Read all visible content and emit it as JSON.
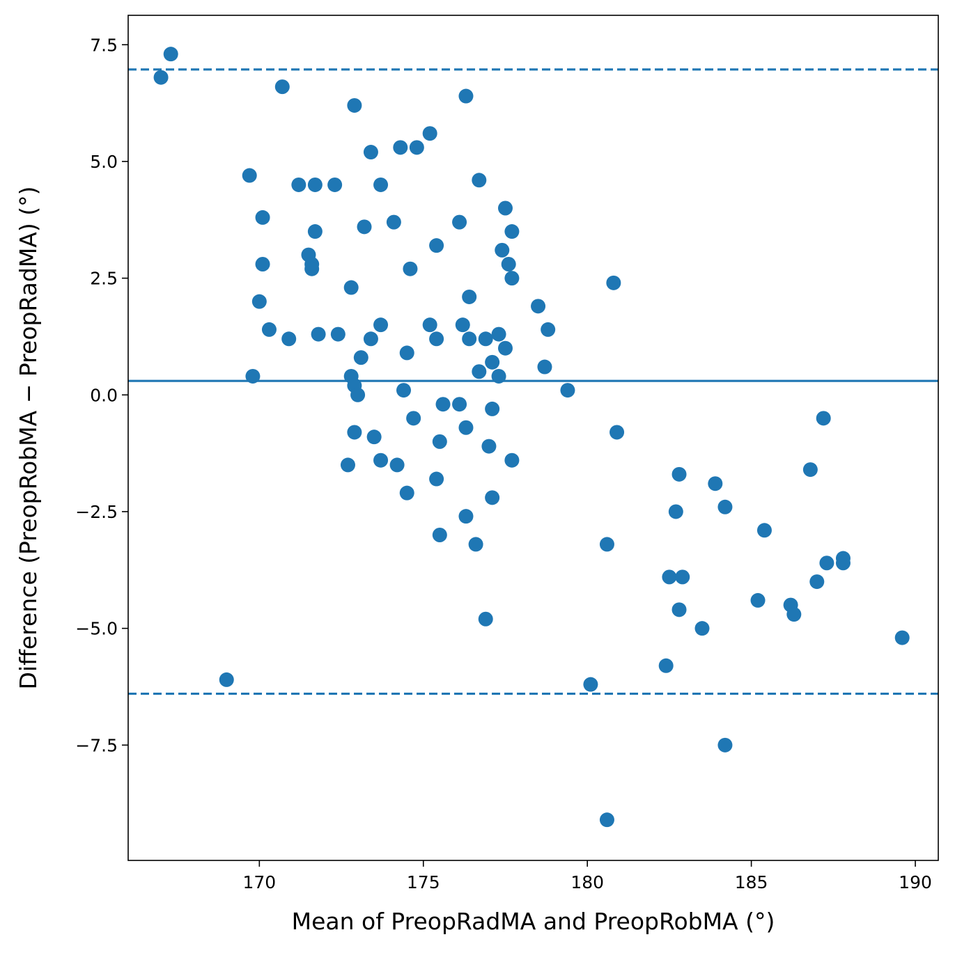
{
  "chart_data": {
    "type": "scatter",
    "title": "",
    "xlabel": "Mean of PreopRadMA and PreopRobMA (°)",
    "ylabel": "Difference (PreopRobMA − PreopRadMA) (°)",
    "xlim": [
      166,
      190.7
    ],
    "ylim": [
      -9.97,
      8.13
    ],
    "xticks": [
      170,
      175,
      180,
      185,
      190
    ],
    "xtick_labels": [
      "170",
      "175",
      "180",
      "185",
      "190"
    ],
    "yticks": [
      7.5,
      5.0,
      2.5,
      0.0,
      -2.5,
      -5.0,
      -7.5
    ],
    "ytick_labels": [
      "7.5",
      "5.0",
      "2.5",
      "0.0",
      "−2.5",
      "−5.0",
      "−7.5"
    ],
    "grid": false,
    "color": "#1f77b4",
    "reference_lines": {
      "mean_difference": 0.3,
      "upper_limit": 6.97,
      "lower_limit": -6.4
    },
    "points": [
      [
        167.0,
        6.8
      ],
      [
        167.3,
        7.3
      ],
      [
        169.0,
        -6.1
      ],
      [
        169.7,
        4.7
      ],
      [
        169.8,
        0.4
      ],
      [
        170.0,
        2.0
      ],
      [
        170.1,
        3.8
      ],
      [
        170.1,
        2.8
      ],
      [
        170.3,
        1.4
      ],
      [
        170.7,
        6.6
      ],
      [
        170.9,
        1.2
      ],
      [
        171.2,
        4.5
      ],
      [
        171.5,
        3.0
      ],
      [
        171.6,
        2.8
      ],
      [
        171.6,
        2.7
      ],
      [
        171.7,
        4.5
      ],
      [
        171.7,
        3.5
      ],
      [
        171.8,
        1.3
      ],
      [
        172.3,
        4.5
      ],
      [
        172.4,
        1.3
      ],
      [
        172.7,
        -1.5
      ],
      [
        172.8,
        0.4
      ],
      [
        172.8,
        2.3
      ],
      [
        172.9,
        0.2
      ],
      [
        172.9,
        -0.8
      ],
      [
        172.9,
        6.2
      ],
      [
        173.0,
        0.0
      ],
      [
        173.1,
        0.8
      ],
      [
        173.2,
        3.6
      ],
      [
        173.4,
        1.2
      ],
      [
        173.4,
        5.2
      ],
      [
        173.5,
        -0.9
      ],
      [
        173.7,
        -1.4
      ],
      [
        173.7,
        4.5
      ],
      [
        173.7,
        1.5
      ],
      [
        174.1,
        3.7
      ],
      [
        174.2,
        -1.5
      ],
      [
        174.3,
        5.3
      ],
      [
        174.4,
        0.1
      ],
      [
        174.5,
        0.9
      ],
      [
        174.5,
        -2.1
      ],
      [
        174.6,
        2.7
      ],
      [
        174.7,
        -0.5
      ],
      [
        174.8,
        5.3
      ],
      [
        175.2,
        5.6
      ],
      [
        175.2,
        1.5
      ],
      [
        175.4,
        3.2
      ],
      [
        175.4,
        1.2
      ],
      [
        175.4,
        -1.8
      ],
      [
        175.5,
        -1.0
      ],
      [
        175.5,
        -3.0
      ],
      [
        175.6,
        -0.2
      ],
      [
        176.1,
        -0.2
      ],
      [
        176.1,
        3.7
      ],
      [
        176.2,
        1.5
      ],
      [
        176.3,
        6.4
      ],
      [
        176.3,
        -2.6
      ],
      [
        176.3,
        -0.7
      ],
      [
        176.4,
        1.2
      ],
      [
        176.4,
        2.1
      ],
      [
        176.6,
        -3.2
      ],
      [
        176.7,
        4.6
      ],
      [
        176.7,
        0.5
      ],
      [
        176.9,
        1.2
      ],
      [
        176.9,
        -4.8
      ],
      [
        177.0,
        -1.1
      ],
      [
        177.1,
        -2.2
      ],
      [
        177.1,
        0.7
      ],
      [
        177.1,
        -0.3
      ],
      [
        177.3,
        0.4
      ],
      [
        177.3,
        1.3
      ],
      [
        177.4,
        3.1
      ],
      [
        177.5,
        4.0
      ],
      [
        177.5,
        1.0
      ],
      [
        177.6,
        2.8
      ],
      [
        177.7,
        3.5
      ],
      [
        177.7,
        -1.4
      ],
      [
        177.7,
        2.5
      ],
      [
        178.5,
        1.9
      ],
      [
        178.7,
        0.6
      ],
      [
        178.8,
        1.4
      ],
      [
        179.4,
        0.1
      ],
      [
        180.1,
        -6.2
      ],
      [
        180.6,
        -9.1
      ],
      [
        180.6,
        -3.2
      ],
      [
        180.8,
        2.4
      ],
      [
        180.9,
        -0.8
      ],
      [
        182.4,
        -5.8
      ],
      [
        182.5,
        -3.9
      ],
      [
        182.7,
        -2.5
      ],
      [
        182.8,
        -4.6
      ],
      [
        182.8,
        -1.7
      ],
      [
        182.9,
        -3.9
      ],
      [
        183.5,
        -5.0
      ],
      [
        183.9,
        -1.9
      ],
      [
        184.2,
        -2.4
      ],
      [
        184.2,
        -7.5
      ],
      [
        185.2,
        -4.4
      ],
      [
        185.4,
        -2.9
      ],
      [
        186.2,
        -4.5
      ],
      [
        186.3,
        -4.7
      ],
      [
        186.8,
        -1.6
      ],
      [
        187.0,
        -4.0
      ],
      [
        187.2,
        -0.5
      ],
      [
        187.3,
        -3.6
      ],
      [
        187.8,
        -3.5
      ],
      [
        187.8,
        -3.6
      ],
      [
        189.6,
        -5.2
      ]
    ]
  }
}
